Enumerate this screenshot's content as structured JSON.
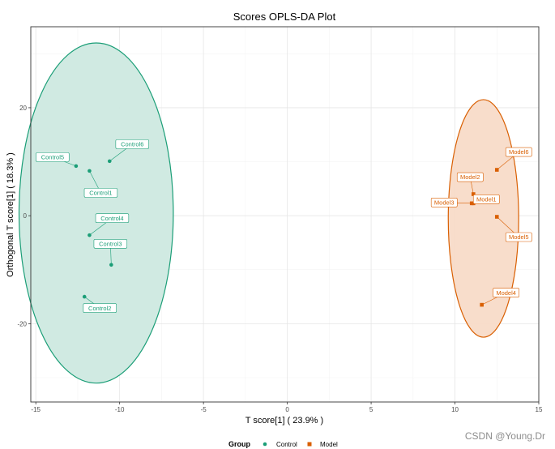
{
  "watermark": "CSDN @Young.Dr",
  "chart_data": {
    "type": "scatter",
    "title": "Scores OPLS-DA Plot",
    "xlabel": "T score[1] ( 23.9% )",
    "ylabel": "Orthogonal T score[1] ( 18.3% )",
    "xlim": [
      -15.3,
      15
    ],
    "ylim": [
      -34.5,
      35
    ],
    "x_ticks": [
      -15,
      -10,
      -5,
      0,
      5,
      10,
      15
    ],
    "x_tick_labels": [
      "-15",
      "-10",
      "-5",
      "0",
      "5",
      "10",
      "15"
    ],
    "y_ticks": [
      -20,
      0,
      20
    ],
    "y_tick_labels": [
      "-20",
      "0",
      "20"
    ],
    "grid": true,
    "legend": {
      "title": "Group",
      "position": "bottom",
      "entries": [
        {
          "name": "Control",
          "color": "#1b9e77",
          "marker": "circle"
        },
        {
          "name": "Model",
          "color": "#d95f02",
          "marker": "square"
        }
      ]
    },
    "series": [
      {
        "name": "Control",
        "color": "#1b9e77",
        "fill": "#cde9e0",
        "marker": "circle",
        "ellipse": {
          "cx": -11.4,
          "cy": 0.5,
          "rx": 4.6,
          "ry": 31.5
        },
        "points": [
          {
            "label": "Control1",
            "x": -11.8,
            "y": 8.3
          },
          {
            "label": "Control2",
            "x": -12.1,
            "y": -15.0
          },
          {
            "label": "Control3",
            "x": -10.5,
            "y": -9.1
          },
          {
            "label": "Control4",
            "x": -11.8,
            "y": -3.6
          },
          {
            "label": "Control5",
            "x": -12.6,
            "y": 9.2
          },
          {
            "label": "Control6",
            "x": -10.6,
            "y": 10.1
          }
        ]
      },
      {
        "name": "Model",
        "color": "#d95f02",
        "fill": "#f8dbc8",
        "marker": "square",
        "ellipse": {
          "cx": 11.7,
          "cy": -0.5,
          "rx": 2.1,
          "ry": 22.0
        },
        "points": [
          {
            "label": "Model1",
            "x": 11.1,
            "y": 2.3
          },
          {
            "label": "Model2",
            "x": 11.1,
            "y": 4.0
          },
          {
            "label": "Model3",
            "x": 11.0,
            "y": 2.3
          },
          {
            "label": "Model4",
            "x": 11.6,
            "y": -16.5
          },
          {
            "label": "Model5",
            "x": 12.5,
            "y": -0.2
          },
          {
            "label": "Model6",
            "x": 12.5,
            "y": 8.5
          }
        ]
      }
    ]
  }
}
